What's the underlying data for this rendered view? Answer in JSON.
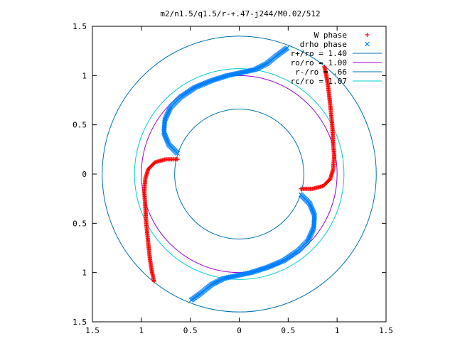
{
  "chart_data": {
    "type": "scatter",
    "title": "m2/n1.5/q1.5/r-+.47-j244/M0.02/512",
    "xlabel": "",
    "ylabel": "",
    "xlim": [
      -1.5,
      1.5
    ],
    "ylim": [
      -1.5,
      1.5
    ],
    "x_ticks": [
      -1.5,
      -1,
      -0.5,
      0,
      0.5,
      1,
      1.5
    ],
    "y_ticks": [
      1.5,
      1,
      0.5,
      0,
      -0.5,
      -1,
      -1.5
    ],
    "x_tick_labels": [
      "1.5",
      "1",
      "0.5",
      "0",
      "0.5",
      "1",
      "1.5"
    ],
    "y_tick_labels": [
      "1.5",
      "1",
      "0.5",
      "0",
      "0.5",
      "1",
      "1.5"
    ],
    "grid": false,
    "legend_position": "top-right",
    "circles": [
      {
        "name": "r+/ro = 1.40",
        "radius": 1.4,
        "color": "#0072b2"
      },
      {
        "name": "ro/ro = 1.00",
        "radius": 1.0,
        "color": "#9400d3"
      },
      {
        "name": "r-/ro = .66",
        "radius": 0.66,
        "color": "#0072b2"
      },
      {
        "name": "rc/ro = 1.07",
        "radius": 1.07,
        "color": "#00cccc"
      }
    ],
    "series": [
      {
        "name": "W phase",
        "marker": "+",
        "color": "#ff0000",
        "arms": [
          [
            [
              0.63,
              -0.15
            ],
            [
              0.75,
              -0.15
            ],
            [
              0.86,
              -0.12
            ],
            [
              0.93,
              -0.05
            ],
            [
              0.96,
              0.05
            ],
            [
              0.97,
              0.18
            ],
            [
              0.96,
              0.32
            ],
            [
              0.95,
              0.5
            ],
            [
              0.93,
              0.7
            ],
            [
              0.91,
              0.88
            ],
            [
              0.89,
              1.0
            ],
            [
              0.87,
              1.09
            ]
          ],
          [
            [
              -0.63,
              0.15
            ],
            [
              -0.75,
              0.15
            ],
            [
              -0.86,
              0.12
            ],
            [
              -0.93,
              0.05
            ],
            [
              -0.96,
              -0.05
            ],
            [
              -0.97,
              -0.18
            ],
            [
              -0.96,
              -0.32
            ],
            [
              -0.95,
              -0.5
            ],
            [
              -0.93,
              -0.7
            ],
            [
              -0.91,
              -0.88
            ],
            [
              -0.89,
              -1.0
            ],
            [
              -0.87,
              -1.09
            ]
          ]
        ]
      },
      {
        "name": "drho phase",
        "marker": "x",
        "color": "#0080ff",
        "arms": [
          [
            [
              0.63,
              -0.21
            ],
            [
              0.72,
              -0.3
            ],
            [
              0.77,
              -0.42
            ],
            [
              0.76,
              -0.55
            ],
            [
              0.7,
              -0.68
            ],
            [
              0.6,
              -0.78
            ],
            [
              0.45,
              -0.88
            ],
            [
              0.28,
              -0.95
            ],
            [
              0.12,
              -1.0
            ],
            [
              -0.02,
              -1.03
            ],
            [
              -0.16,
              -1.06
            ],
            [
              -0.28,
              -1.12
            ],
            [
              -0.38,
              -1.2
            ],
            [
              -0.49,
              -1.28
            ]
          ],
          [
            [
              -0.63,
              0.21
            ],
            [
              -0.72,
              0.3
            ],
            [
              -0.77,
              0.42
            ],
            [
              -0.76,
              0.55
            ],
            [
              -0.7,
              0.68
            ],
            [
              -0.6,
              0.78
            ],
            [
              -0.45,
              0.88
            ],
            [
              -0.28,
              0.95
            ],
            [
              -0.12,
              1.0
            ],
            [
              0.02,
              1.03
            ],
            [
              0.16,
              1.06
            ],
            [
              0.28,
              1.12
            ],
            [
              0.38,
              1.2
            ],
            [
              0.49,
              1.28
            ]
          ]
        ]
      }
    ]
  }
}
